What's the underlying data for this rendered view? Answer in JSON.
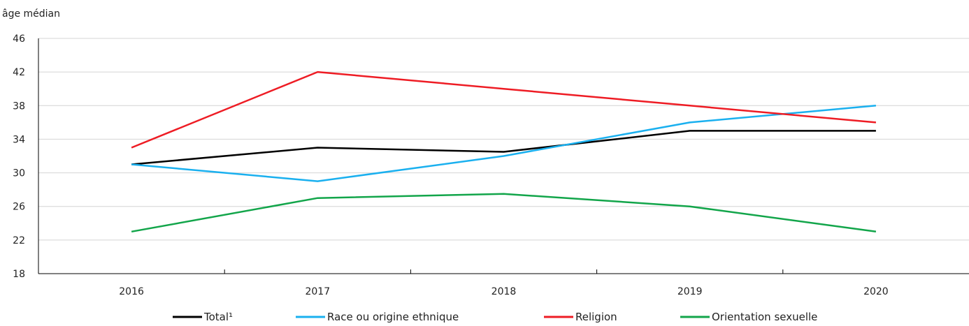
{
  "chart_data": {
    "type": "line",
    "title": "",
    "ylabel": "âge médian",
    "xlabel": "",
    "ylim": [
      18,
      46
    ],
    "yticks": [
      18,
      22,
      26,
      30,
      34,
      38,
      42,
      46
    ],
    "categories": [
      "2016",
      "2017",
      "2018",
      "2019",
      "2020"
    ],
    "grid": true,
    "legend_position": "bottom",
    "series": [
      {
        "name": "Total¹",
        "color": "#000000",
        "values": [
          31,
          33,
          32.5,
          35,
          35
        ]
      },
      {
        "name": "Race ou origine ethnique",
        "color": "#1ab0ef",
        "values": [
          31,
          29,
          32,
          36,
          38
        ]
      },
      {
        "name": "Religion",
        "color": "#ee1c24",
        "values": [
          33,
          42,
          40,
          38,
          36
        ]
      },
      {
        "name": "Orientation sexuelle",
        "color": "#12a54a",
        "values": [
          23,
          27,
          27.5,
          26,
          23
        ]
      }
    ]
  }
}
